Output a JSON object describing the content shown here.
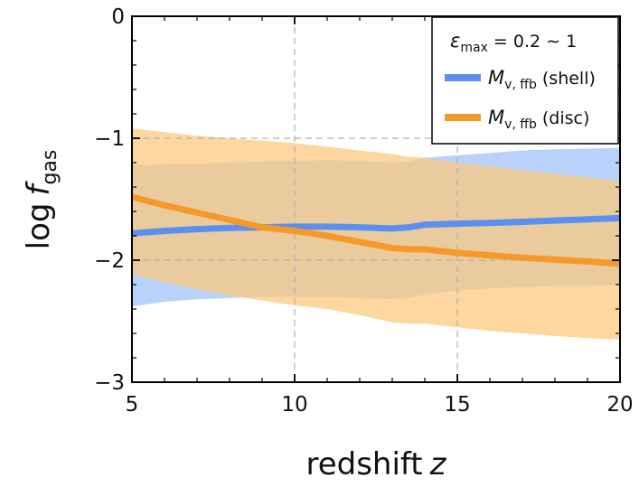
{
  "chart_data": {
    "type": "line",
    "xlabel": "redshift",
    "xlabel_var": "z",
    "ylabel": "log",
    "ylabel_var": "f",
    "ylabel_sub": "gas",
    "xlim": [
      5,
      20
    ],
    "ylim": [
      -3,
      0
    ],
    "xticks": [
      5,
      10,
      15,
      20
    ],
    "xtick_labels": [
      "5",
      "10",
      "15",
      "20"
    ],
    "yticks": [
      -3,
      -2,
      -1,
      0
    ],
    "ytick_labels": [
      "−3",
      "−2",
      "−1",
      "0"
    ],
    "grid_lines_x": [
      10,
      15
    ],
    "grid_lines_y": [
      -1,
      -2
    ],
    "legend": {
      "placement": "top-right",
      "title_symbol": "ε",
      "title_sub": "max",
      "title_rest": " = 0.2 ∼ 1"
    },
    "series": [
      {
        "name": "shell",
        "label_symbol": "M",
        "label_sub": "v, ffb",
        "label_rest": " (shell)",
        "color": "#5b8ff0",
        "band_color": "#9cc1fa",
        "x": [
          5,
          6,
          7,
          8,
          9,
          10,
          11,
          12,
          13,
          13.5,
          14,
          15,
          16,
          17,
          18,
          19,
          20
        ],
        "y": [
          -1.78,
          -1.76,
          -1.745,
          -1.735,
          -1.73,
          -1.725,
          -1.725,
          -1.73,
          -1.74,
          -1.73,
          -1.71,
          -1.7,
          -1.695,
          -1.685,
          -1.675,
          -1.665,
          -1.655
        ],
        "lower": [
          -2.38,
          -2.34,
          -2.32,
          -2.31,
          -2.3,
          -2.3,
          -2.3,
          -2.31,
          -2.32,
          -2.31,
          -2.28,
          -2.25,
          -2.23,
          -2.22,
          -2.21,
          -2.21,
          -2.2
        ],
        "upper": [
          -1.22,
          -1.215,
          -1.21,
          -1.2,
          -1.19,
          -1.185,
          -1.18,
          -1.185,
          -1.2,
          -1.19,
          -1.16,
          -1.14,
          -1.12,
          -1.1,
          -1.09,
          -1.085,
          -1.08
        ]
      },
      {
        "name": "disc",
        "label_symbol": "M",
        "label_sub": "v, ffb",
        "label_rest": " (disc)",
        "color": "#f59a2a",
        "band_color": "#fcc87a",
        "x": [
          5,
          6,
          7,
          8,
          9,
          10,
          11,
          12,
          13,
          13.5,
          14,
          15,
          16,
          17,
          18,
          19,
          20
        ],
        "y": [
          -1.48,
          -1.55,
          -1.61,
          -1.67,
          -1.73,
          -1.76,
          -1.8,
          -1.85,
          -1.9,
          -1.91,
          -1.91,
          -1.94,
          -1.96,
          -1.98,
          -1.995,
          -2.01,
          -2.03
        ],
        "lower": [
          -2.12,
          -2.18,
          -2.24,
          -2.29,
          -2.33,
          -2.37,
          -2.4,
          -2.45,
          -2.51,
          -2.52,
          -2.52,
          -2.55,
          -2.58,
          -2.6,
          -2.62,
          -2.64,
          -2.65
        ],
        "upper": [
          -0.92,
          -0.95,
          -0.98,
          -1.0,
          -1.02,
          -1.04,
          -1.07,
          -1.1,
          -1.13,
          -1.15,
          -1.16,
          -1.2,
          -1.23,
          -1.26,
          -1.29,
          -1.32,
          -1.35
        ]
      }
    ]
  }
}
